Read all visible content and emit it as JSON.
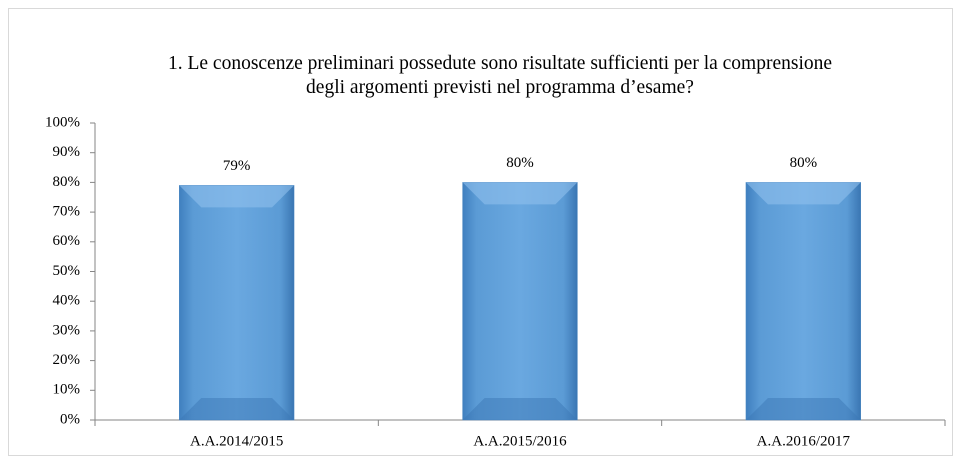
{
  "chart_data": {
    "type": "bar",
    "title": "1. Le conoscenze preliminari possedute sono risultate  sufficienti per la comprensione degli argomenti  previsti nel programma d’esame?",
    "categories": [
      "A.A.2014/2015",
      "A.A.2015/2016",
      "A.A.2016/2017"
    ],
    "values": [
      79,
      80,
      80
    ],
    "value_labels": [
      "79%",
      "80%",
      "80%"
    ],
    "color": "#5b9bd5",
    "ylim": [
      0,
      100
    ],
    "yticks": [
      {
        "value": 0,
        "label": "0%"
      },
      {
        "value": 10,
        "label": "10%"
      },
      {
        "value": 20,
        "label": "20%"
      },
      {
        "value": 30,
        "label": "30%"
      },
      {
        "value": 40,
        "label": "40%"
      },
      {
        "value": 50,
        "label": "50%"
      },
      {
        "value": 60,
        "label": "60%"
      },
      {
        "value": 70,
        "label": "70%"
      },
      {
        "value": 80,
        "label": "80%"
      },
      {
        "value": 90,
        "label": "90%"
      },
      {
        "value": 100,
        "label": "100%"
      }
    ],
    "grid": false
  }
}
